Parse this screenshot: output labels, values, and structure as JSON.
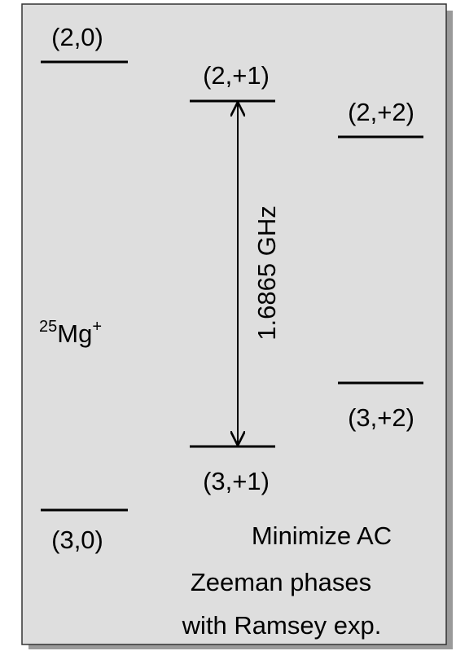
{
  "levels": [
    {
      "label": "(2,0)"
    },
    {
      "label": "(2,+1)"
    },
    {
      "label": "(2,+2)"
    },
    {
      "label": "(3,+2)"
    },
    {
      "label": "(3,+1)"
    },
    {
      "label": "(3,0)"
    }
  ],
  "transition": {
    "label": "1.6865 GHz"
  },
  "species": {
    "mass": "25",
    "element": "Mg",
    "charge": "+"
  },
  "note": [
    "Minimize AC",
    "Zeeman phases",
    "with Ramsey exp."
  ]
}
